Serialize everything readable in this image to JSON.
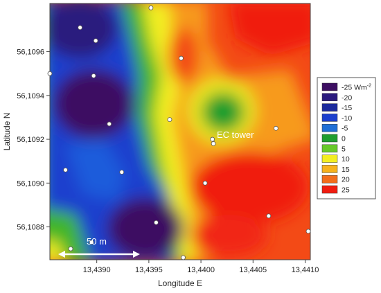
{
  "map": {
    "xlabel": "Longitude E",
    "ylabel": "Latitude N",
    "x_ticks": [
      "13,4390",
      "13,4395",
      "13,4400",
      "13,4405",
      "13,4410"
    ],
    "x_tick_values": [
      13.439,
      13.4395,
      13.44,
      13.4405,
      13.441
    ],
    "y_ticks": [
      "56,1096",
      "56,1094",
      "56,1092",
      "56,1090",
      "56,1088"
    ],
    "y_tick_values": [
      56.1096,
      56.1094,
      56.1092,
      56.109,
      56.1088
    ],
    "xlim": [
      13.43855,
      13.44105
    ],
    "ylim": [
      56.10865,
      56.10982
    ],
    "tower_label": "EC tower",
    "scale_bar_label": "50 m",
    "legend": {
      "unit_label": "Wm",
      "unit_superscript": "-2",
      "entries": [
        {
          "label": "-25",
          "color": "#3d0f62"
        },
        {
          "label": "-20",
          "color": "#2a1a7e"
        },
        {
          "label": "-15",
          "color": "#1c2a9c"
        },
        {
          "label": "-10",
          "color": "#1b3fce"
        },
        {
          "label": "-5",
          "color": "#1f6fd6"
        },
        {
          "label": "0",
          "color": "#1f9e2f"
        },
        {
          "label": "5",
          "color": "#67c92a"
        },
        {
          "label": "10",
          "color": "#f3ee22"
        },
        {
          "label": "15",
          "color": "#f7b21c"
        },
        {
          "label": "20",
          "color": "#f26d1c"
        },
        {
          "label": "25",
          "color": "#f01c10"
        }
      ]
    },
    "colors": {
      "deep_purple": "#3d0f62",
      "blue": "#1b3fce",
      "green": "#3fb52a",
      "yellow": "#f3ee22",
      "orange": "#f79a1c",
      "red": "#f01c10"
    },
    "sample_points": [
      {
        "lon": 13.43884,
        "lat": 56.10971
      },
      {
        "lon": 13.43899,
        "lat": 56.10965
      },
      {
        "lon": 13.43952,
        "lat": 56.1098
      },
      {
        "lon": 13.43855,
        "lat": 56.1095
      },
      {
        "lon": 13.43897,
        "lat": 56.10949
      },
      {
        "lon": 13.43981,
        "lat": 56.10957
      },
      {
        "lon": 13.43912,
        "lat": 56.10927
      },
      {
        "lon": 13.4397,
        "lat": 56.10929
      },
      {
        "lon": 13.44011,
        "lat": 56.1092
      },
      {
        "lon": 13.44072,
        "lat": 56.10925
      },
      {
        "lon": 13.4387,
        "lat": 56.10906
      },
      {
        "lon": 13.43924,
        "lat": 56.10905
      },
      {
        "lon": 13.44004,
        "lat": 56.109
      },
      {
        "lon": 13.43875,
        "lat": 56.1087
      },
      {
        "lon": 13.43957,
        "lat": 56.10882
      },
      {
        "lon": 13.44065,
        "lat": 56.10885
      },
      {
        "lon": 13.44103,
        "lat": 56.10878
      },
      {
        "lon": 13.43895,
        "lat": 56.10873
      },
      {
        "lon": 13.43983,
        "lat": 56.10866
      }
    ],
    "tower_point": {
      "lon": 13.44012,
      "lat": 56.10918
    }
  }
}
